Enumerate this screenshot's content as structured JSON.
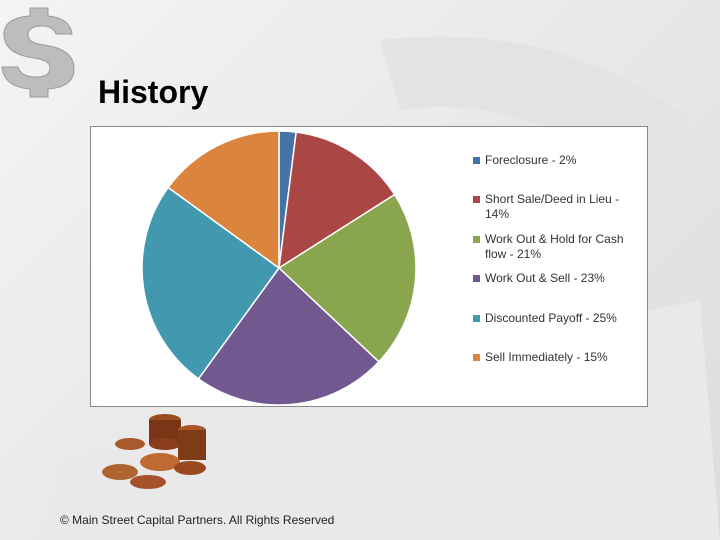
{
  "slide": {
    "title": "History",
    "footer": "© Main Street Capital Partners. All Rights Reserved"
  },
  "chart_data": {
    "type": "pie",
    "categories": [
      "Foreclosure - 2%",
      "Short Sale/Deed in Lieu - 14%",
      "Work Out & Hold for Cash flow - 21%",
      "Work Out & Sell - 23%",
      "Discounted Payoff - 25%",
      "Sell Immediately - 15%"
    ],
    "values": [
      2,
      14,
      21,
      23,
      25,
      15
    ],
    "colors": [
      "#4572a7",
      "#aa4643",
      "#89a54e",
      "#71588f",
      "#4198af",
      "#db843d"
    ],
    "legend": "right"
  }
}
